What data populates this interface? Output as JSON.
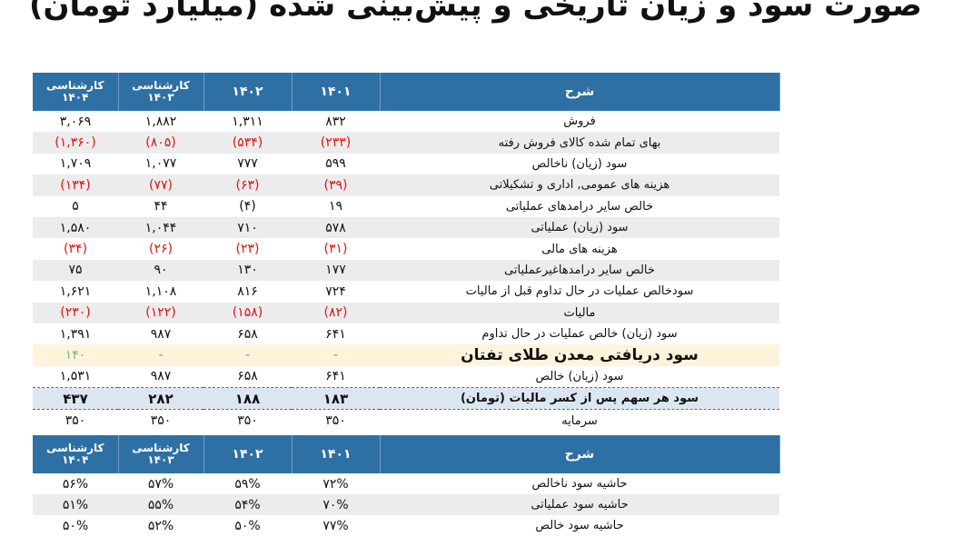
{
  "title": "صورت سود و زیان تاریخی و پیش‌بینی شده (میلیارد تومان)",
  "headers": {
    "col1": "کارشناسی ۱۴۰۴",
    "col2": "کارشناسی ۱۴۰۳",
    "col3": "۱۴۰۲",
    "col4": "۱۴۰۱",
    "desc": "شرح"
  },
  "rows": [
    {
      "desc": "فروش",
      "v1": "۳,۰۶۹",
      "v2": "۱,۸۸۲",
      "v3": "۱,۳۱۱",
      "v4": "۸۳۲"
    },
    {
      "desc": "بهای تمام شده کالای فروش رفته",
      "v1": "(۱,۳۶۰)",
      "v2": "(۸۰۵)",
      "v3": "(۵۳۴)",
      "v4": "(۲۳۳)"
    },
    {
      "desc": "سود (زیان) ناخالص",
      "v1": "۱,۷۰۹",
      "v2": "۱,۰۷۷",
      "v3": "۷۷۷",
      "v4": "۵۹۹"
    },
    {
      "desc": "هزینه های عمومی, اداری و تشکیلاتی",
      "v1": "(۱۳۴)",
      "v2": "(۷۷)",
      "v3": "(۶۳)",
      "v4": "(۳۹)"
    },
    {
      "desc": "خالص سایر درامدهای  عملیاتی",
      "v1": "۵",
      "v2": "۴۴",
      "v3": "(۴)",
      "v4": "۱۹"
    },
    {
      "desc": "سود (زیان) عملیاتی",
      "v1": "۱,۵۸۰",
      "v2": "۱,۰۴۴",
      "v3": "۷۱۰",
      "v4": "۵۷۸"
    },
    {
      "desc": "هزینه های مالی",
      "v1": "(۳۴)",
      "v2": "(۲۶)",
      "v3": "(۲۳)",
      "v4": "(۳۱)"
    },
    {
      "desc": "خالص سایر درامدهاغیرعملیاتی",
      "v1": "۷۵",
      "v2": "۹۰",
      "v3": "۱۳۰",
      "v4": "۱۷۷"
    },
    {
      "desc": "سودخالص عملیات در حال تداوم قبل از مالیات",
      "v1": "۱,۶۲۱",
      "v2": "۱,۱۰۸",
      "v3": "۸۱۶",
      "v4": "۷۲۴"
    },
    {
      "desc": "مالیات",
      "v1": "(۲۳۰)",
      "v2": "(۱۲۲)",
      "v3": "(۱۵۸)",
      "v4": "(۸۲)"
    },
    {
      "desc": "سود (زیان) خالص عملیات در حال تداوم",
      "v1": "۱,۳۹۱",
      "v2": "۹۸۷",
      "v3": "۶۵۸",
      "v4": "۶۴۱"
    }
  ],
  "gold_row": {
    "desc": "سود دریافتی معدن طلای تفتان",
    "v1": "۱۴۰",
    "v2": "-",
    "v3": "-",
    "v4": "-"
  },
  "net_row": {
    "desc": "سود (زیان) خالص",
    "v1": "۱,۵۳۱",
    "v2": "۹۸۷",
    "v3": "۶۵۸",
    "v4": "۶۴۱"
  },
  "eps_row": {
    "desc": "سود هر سهم پس از کسر مالیات (تومان)",
    "v1": "۴۳۷",
    "v2": "۲۸۲",
    "v3": "۱۸۸",
    "v4": "۱۸۳"
  },
  "capital_row": {
    "desc": "سرمایه",
    "v1": "۳۵۰",
    "v2": "۳۵۰",
    "v3": "۳۵۰",
    "v4": "۳۵۰"
  },
  "ratios": [
    {
      "desc": "حاشیه سود ناخالص",
      "v1": "۵۶%",
      "v2": "۵۷%",
      "v3": "۵۹%",
      "v4": "۷۲%"
    },
    {
      "desc": "حاشیه سود عملیاتی",
      "v1": "۵۱%",
      "v2": "۵۵%",
      "v3": "۵۴%",
      "v4": "۷۰%"
    },
    {
      "desc": "حاشیه سود خالص",
      "v1": "۵۰%",
      "v2": "۵۲%",
      "v3": "۵۰%",
      "v4": "۷۷%"
    }
  ]
}
